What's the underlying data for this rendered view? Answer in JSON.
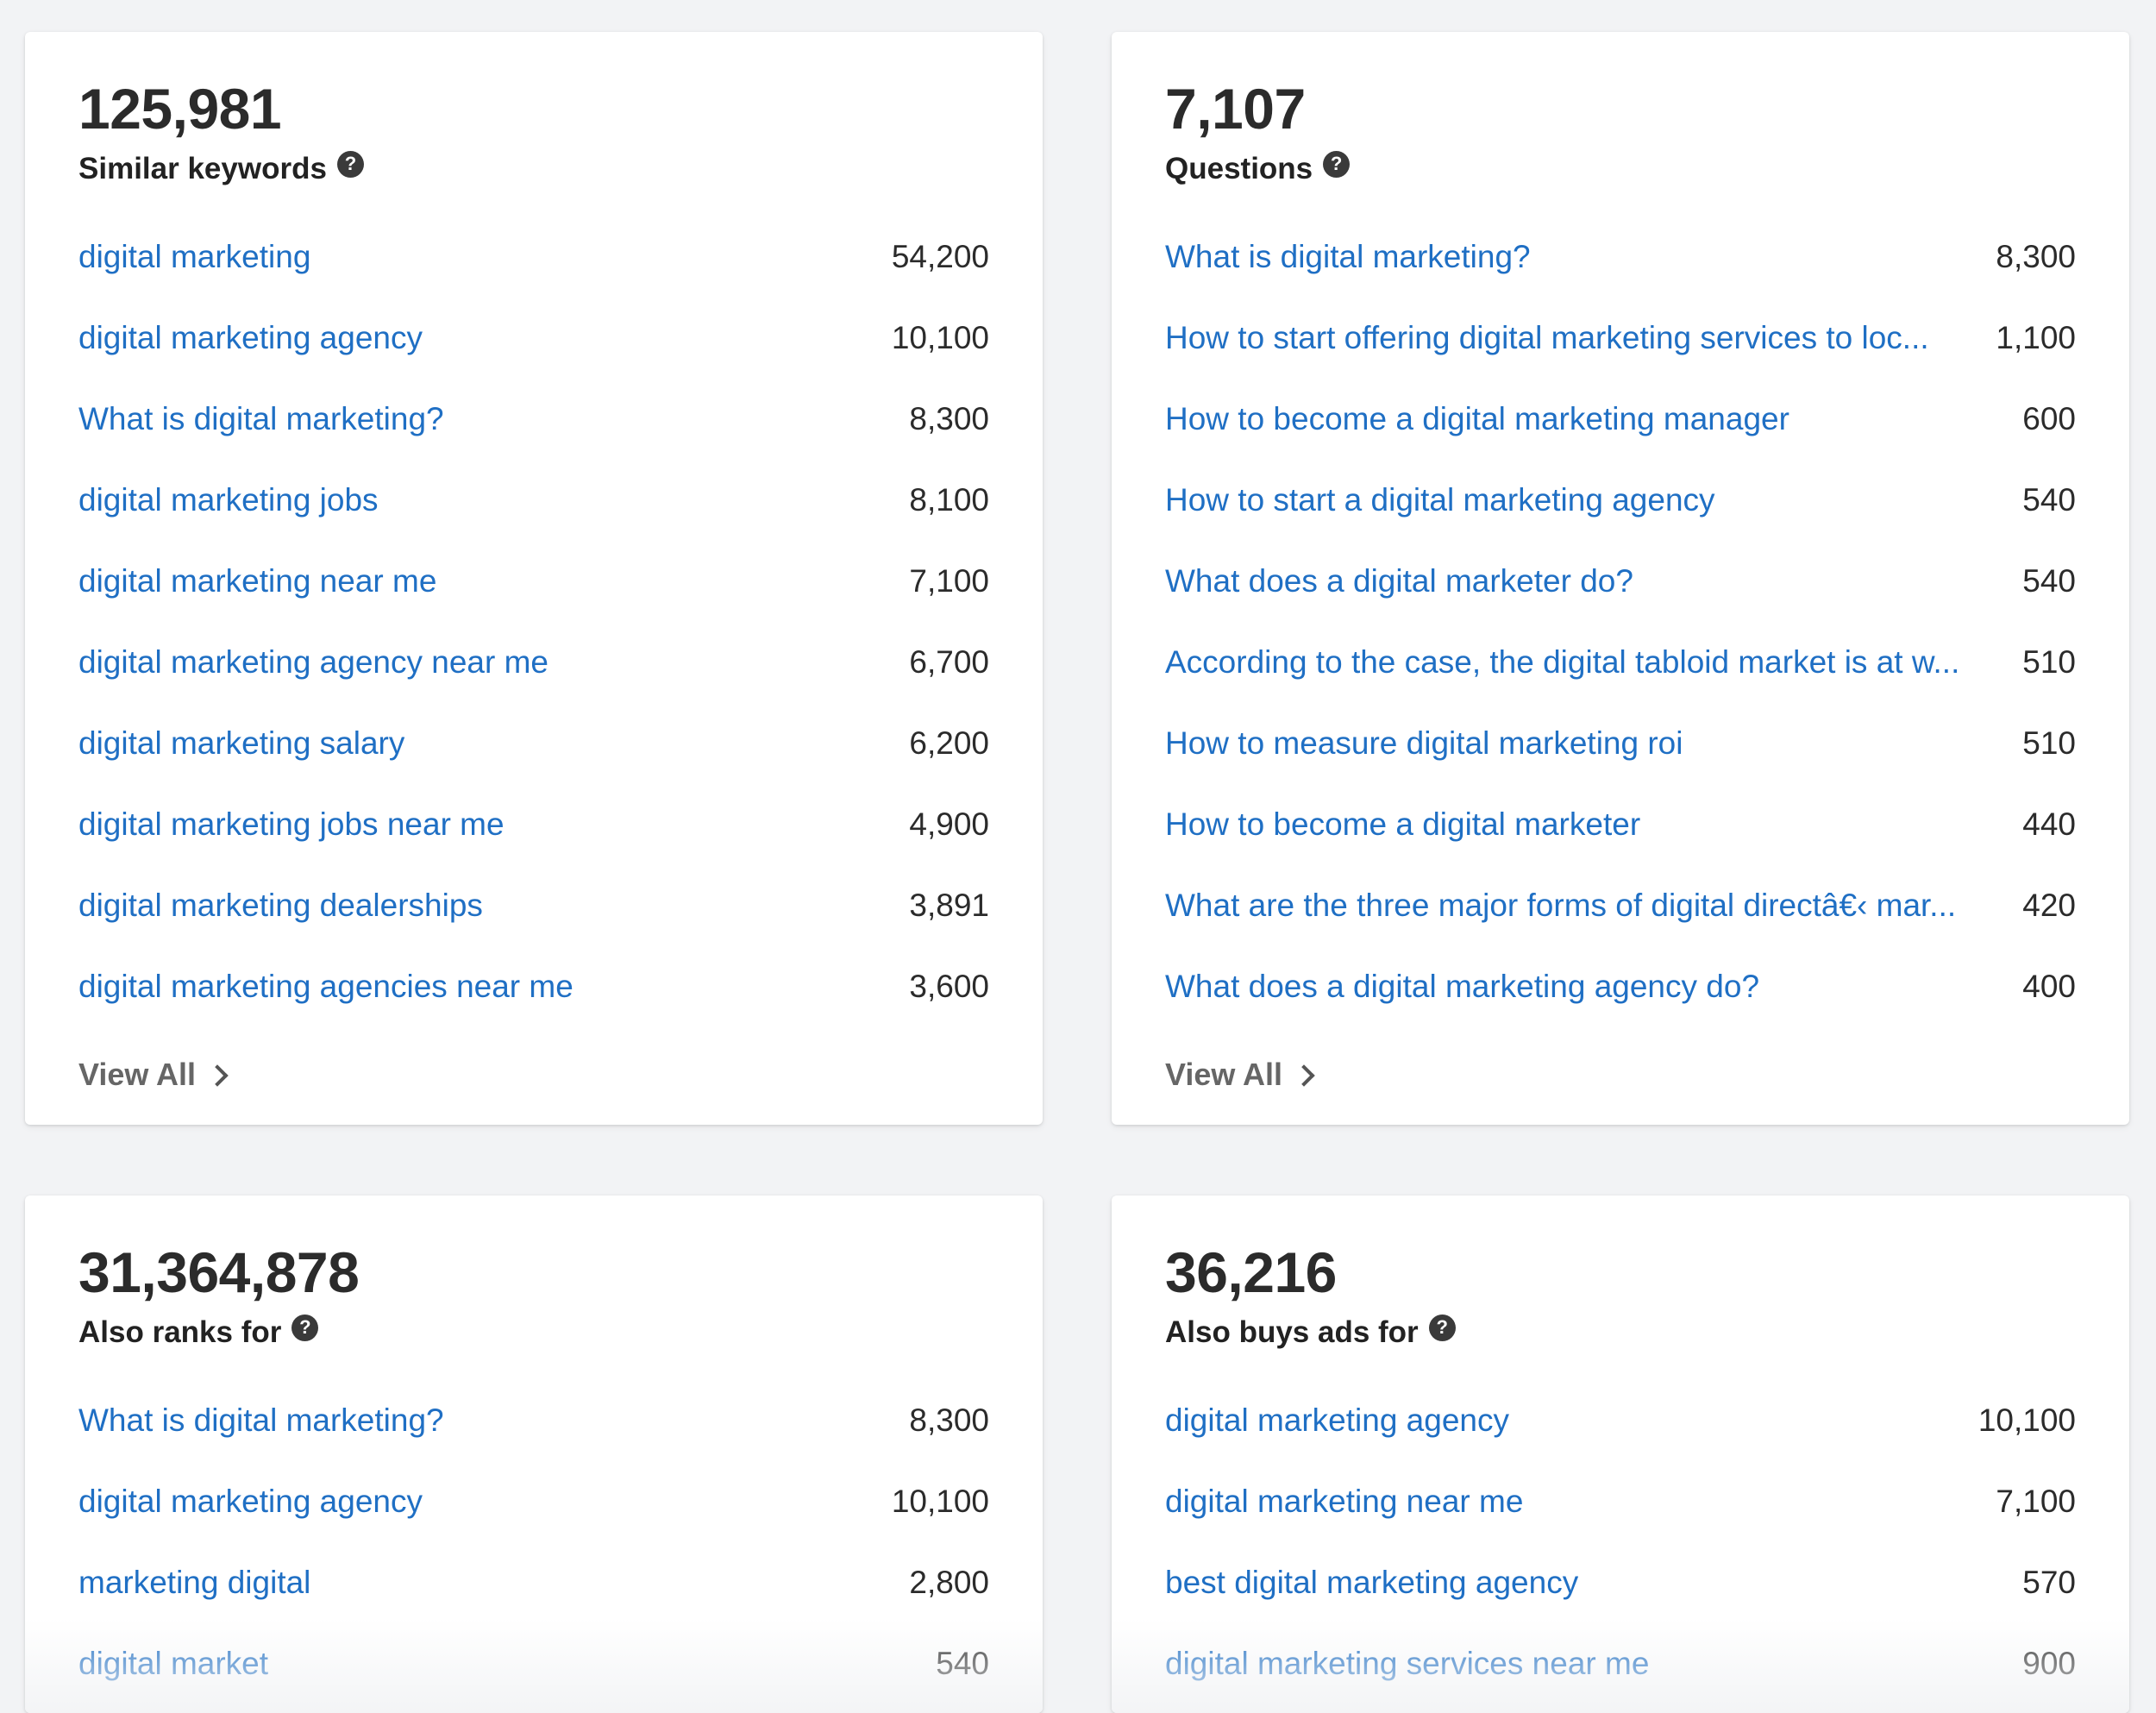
{
  "cards": [
    {
      "count": "125,981",
      "title": "Similar keywords",
      "rows": [
        {
          "keyword": "digital marketing",
          "volume": "54,200"
        },
        {
          "keyword": "digital marketing agency",
          "volume": "10,100"
        },
        {
          "keyword": "What is digital marketing?",
          "volume": "8,300"
        },
        {
          "keyword": "digital marketing jobs",
          "volume": "8,100"
        },
        {
          "keyword": "digital marketing near me",
          "volume": "7,100"
        },
        {
          "keyword": "digital marketing agency near me",
          "volume": "6,700"
        },
        {
          "keyword": "digital marketing salary",
          "volume": "6,200"
        },
        {
          "keyword": "digital marketing jobs near me",
          "volume": "4,900"
        },
        {
          "keyword": "digital marketing dealerships",
          "volume": "3,891"
        },
        {
          "keyword": "digital marketing agencies near me",
          "volume": "3,600"
        }
      ],
      "view_all": "View All"
    },
    {
      "count": "7,107",
      "title": "Questions",
      "rows": [
        {
          "keyword": "What is digital marketing?",
          "volume": "8,300"
        },
        {
          "keyword": "How to start offering digital marketing services to loc...",
          "volume": "1,100"
        },
        {
          "keyword": "How to become a digital marketing manager",
          "volume": "600"
        },
        {
          "keyword": "How to start a digital marketing agency",
          "volume": "540"
        },
        {
          "keyword": "What does a digital marketer do?",
          "volume": "540"
        },
        {
          "keyword": "According to the case, the digital tabloid market is at w...",
          "volume": "510"
        },
        {
          "keyword": "How to measure digital marketing roi",
          "volume": "510"
        },
        {
          "keyword": "How to become a digital marketer",
          "volume": "440"
        },
        {
          "keyword": "What are the three major forms of digital directâ€‹ mar...",
          "volume": "420"
        },
        {
          "keyword": "What does a digital marketing agency do?",
          "volume": "400"
        }
      ],
      "view_all": "View All"
    },
    {
      "count": "31,364,878",
      "title": "Also ranks for",
      "rows": [
        {
          "keyword": "What is digital marketing?",
          "volume": "8,300"
        },
        {
          "keyword": "digital marketing agency",
          "volume": "10,100"
        },
        {
          "keyword": "marketing digital",
          "volume": "2,800"
        },
        {
          "keyword": "digital market",
          "volume": "540"
        }
      ]
    },
    {
      "count": "36,216",
      "title": "Also buys ads for",
      "rows": [
        {
          "keyword": "digital marketing agency",
          "volume": "10,100"
        },
        {
          "keyword": "digital marketing near me",
          "volume": "7,100"
        },
        {
          "keyword": "best digital marketing agency",
          "volume": "570"
        },
        {
          "keyword": "digital marketing services near me",
          "volume": "900"
        }
      ]
    }
  ],
  "icons": {
    "help": "question-circle-icon",
    "view_all": "chevron-right-icon"
  },
  "colors": {
    "link": "#1f6fc4",
    "background": "#f2f3f5",
    "card": "#ffffff"
  }
}
